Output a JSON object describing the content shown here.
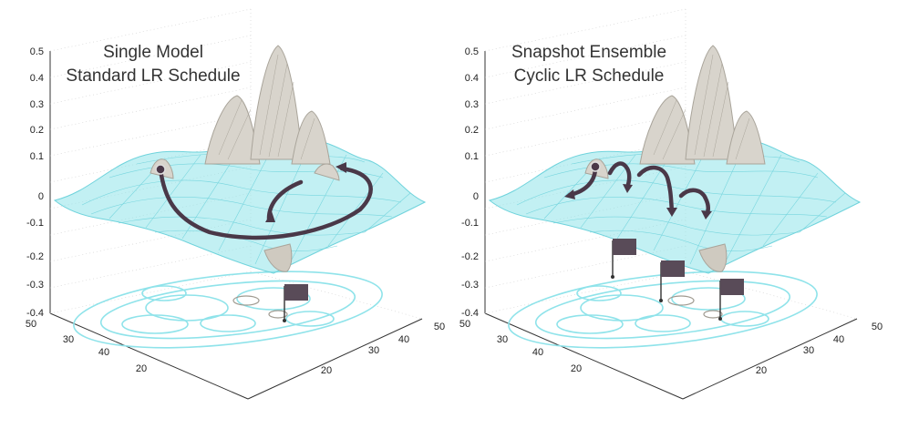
{
  "chart_data": [
    {
      "type": "surface3d",
      "title_lines": [
        "Single Model",
        "Standard LR Schedule"
      ],
      "z_ticks": [
        "0.5",
        "0.4",
        "0.3",
        "0.2",
        "0.1",
        "0",
        "-0.1",
        "-0.2",
        "-0.3",
        "-0.4"
      ],
      "x_ticks_right": [
        "20",
        "30",
        "40",
        "50"
      ],
      "y_ticks_left": [
        "20",
        "30",
        "40",
        "50"
      ],
      "zlim": [
        -0.4,
        0.5
      ],
      "xlim": [
        10,
        50
      ],
      "ylim": [
        10,
        50
      ],
      "surface_color": "#8fe3ea",
      "peak_color": "#b7b2a8",
      "trajectory_color": "#4a3848",
      "flags": 1,
      "trajectory": "single long descent"
    },
    {
      "type": "surface3d",
      "title_lines": [
        "Snapshot Ensemble",
        "Cyclic LR Schedule"
      ],
      "z_ticks": [
        "0.5",
        "0.4",
        "0.3",
        "0.2",
        "0.1",
        "0",
        "-0.1",
        "-0.2",
        "-0.3",
        "-0.4"
      ],
      "x_ticks_right": [
        "20",
        "30",
        "40",
        "50"
      ],
      "y_ticks_left": [
        "20",
        "30",
        "40",
        "50"
      ],
      "zlim": [
        -0.4,
        0.5
      ],
      "xlim": [
        10,
        50
      ],
      "ylim": [
        10,
        50
      ],
      "surface_color": "#8fe3ea",
      "peak_color": "#b7b2a8",
      "trajectory_color": "#4a3848",
      "flags": 3,
      "trajectory": "cyclic hops"
    }
  ]
}
